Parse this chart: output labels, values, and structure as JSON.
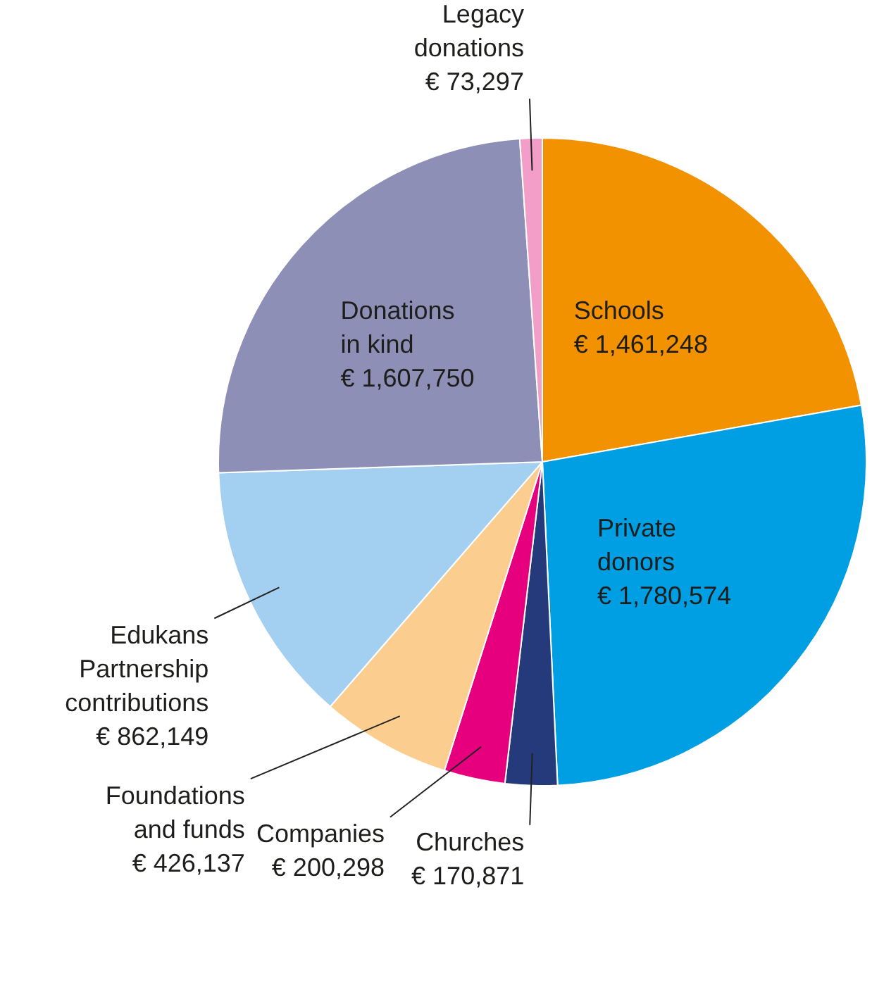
{
  "chart_data": {
    "type": "pie",
    "categories": [
      "Schools",
      "Private donors",
      "Churches",
      "Companies",
      "Foundations and funds",
      "Edukans Partnership contributions",
      "Donations in kind",
      "Legacy donations"
    ],
    "values": [
      1461248,
      1780574,
      170871,
      200298,
      426137,
      862149,
      1607750,
      73297
    ],
    "value_labels": [
      "€ 1,461,248",
      "€ 1,780,574",
      "€ 170,871",
      "€ 200,298",
      "€ 426,137",
      "€ 862,149",
      "€ 1,607,750",
      "€ 73,297"
    ],
    "colors": [
      "#f39200",
      "#009fe3",
      "#253a7a",
      "#e6007e",
      "#fbcd8e",
      "#a3d0f0",
      "#8e8fb6",
      "#f29ec8"
    ]
  }
}
